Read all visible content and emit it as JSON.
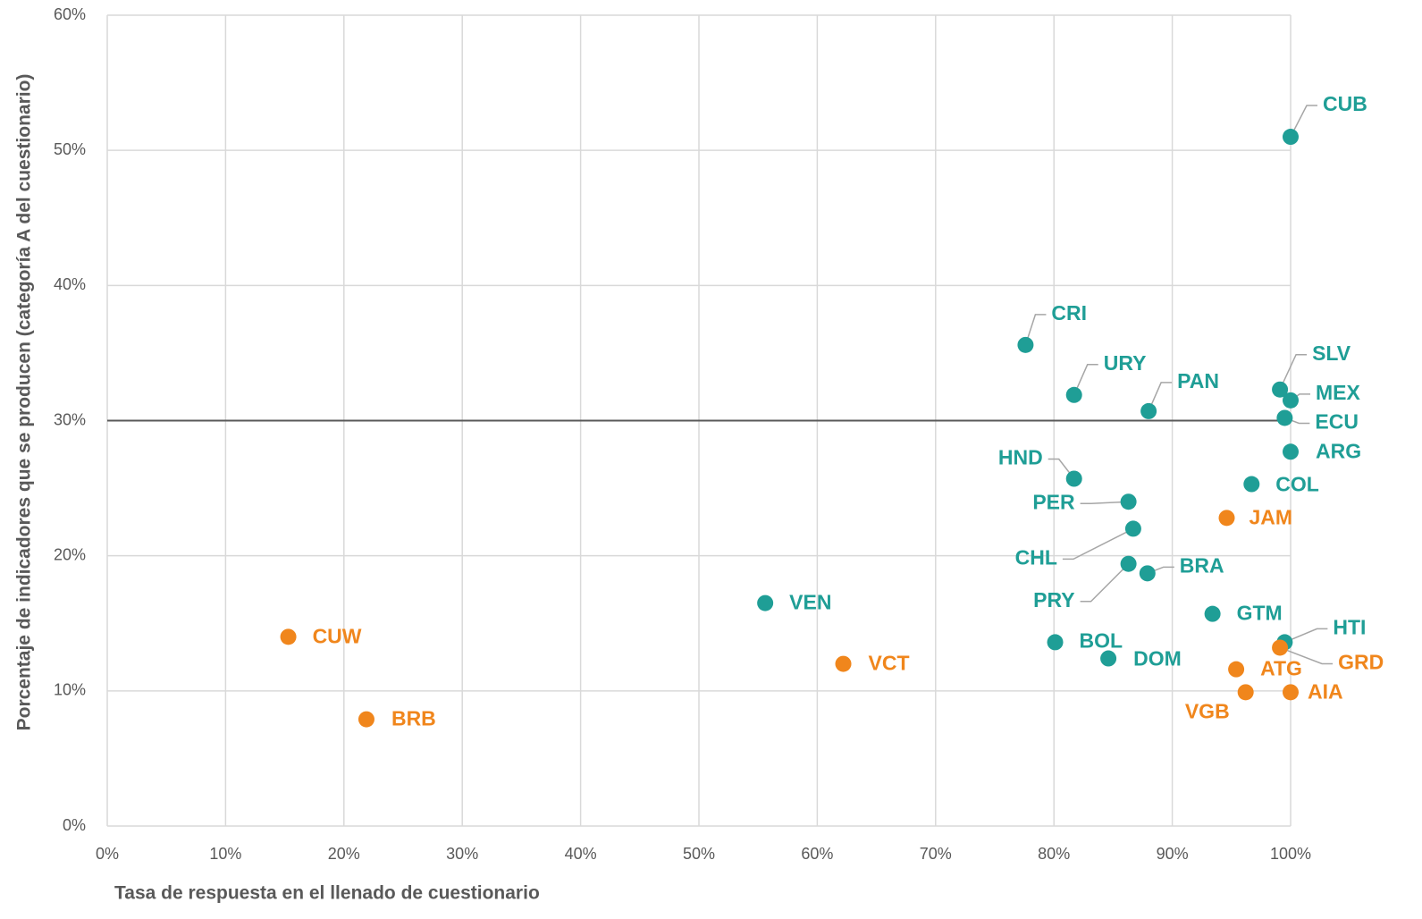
{
  "chart_data": {
    "type": "scatter",
    "x_label": "Tasa de respuesta en el llenado de cuestionario",
    "y_label": "Porcentaje de indicadores que se producen (categoría A del cuestionario)",
    "xlim": [
      0,
      100
    ],
    "ylim": [
      0,
      60
    ],
    "xticks": [
      {
        "value": 0,
        "label": "0%"
      },
      {
        "value": 10,
        "label": "10%"
      },
      {
        "value": 20,
        "label": "20%"
      },
      {
        "value": 30,
        "label": "30%"
      },
      {
        "value": 40,
        "label": "40%"
      },
      {
        "value": 50,
        "label": "50%"
      },
      {
        "value": 60,
        "label": "60%"
      },
      {
        "value": 70,
        "label": "70%"
      },
      {
        "value": 80,
        "label": "80%"
      },
      {
        "value": 90,
        "label": "90%"
      },
      {
        "value": 100,
        "label": "100%"
      }
    ],
    "yticks": [
      {
        "value": 0,
        "label": "0%"
      },
      {
        "value": 10,
        "label": "10%"
      },
      {
        "value": 20,
        "label": "20%"
      },
      {
        "value": 30,
        "label": "30%"
      },
      {
        "value": 40,
        "label": "40%"
      },
      {
        "value": 50,
        "label": "50%"
      },
      {
        "value": 60,
        "label": "60%"
      }
    ],
    "grid": true,
    "reference_line": 30,
    "series": [
      {
        "color": "#1f9e96",
        "labels": [
          "CUB",
          "CRI",
          "URY",
          "PAN",
          "SLV",
          "MEX",
          "ECU",
          "ARG",
          "HND",
          "COL",
          "PER",
          "CHL",
          "PRY",
          "BRA",
          "VEN",
          "GTM",
          "HTI",
          "BOL",
          "DOM"
        ],
        "x": [
          100,
          77.6,
          81.7,
          88.0,
          99.1,
          100,
          99.5,
          100,
          81.7,
          96.7,
          86.3,
          86.7,
          86.3,
          87.9,
          55.6,
          93.4,
          99.5,
          80.1,
          84.6
        ],
        "values": [
          51.0,
          35.6,
          31.9,
          30.7,
          32.3,
          31.5,
          30.2,
          27.7,
          25.7,
          25.3,
          24.0,
          22.0,
          19.4,
          18.7,
          16.5,
          15.7,
          13.6,
          13.6,
          12.4
        ]
      },
      {
        "color": "#f0861c",
        "labels": [
          "JAM",
          "CUW",
          "GRD",
          "VCT",
          "ATG",
          "VGB",
          "AIA",
          "BRB"
        ],
        "x": [
          94.6,
          15.3,
          99.1,
          62.2,
          95.4,
          96.2,
          100,
          21.9
        ],
        "values": [
          22.8,
          14.0,
          13.2,
          12.0,
          11.6,
          9.9,
          9.9,
          7.9
        ]
      }
    ]
  }
}
